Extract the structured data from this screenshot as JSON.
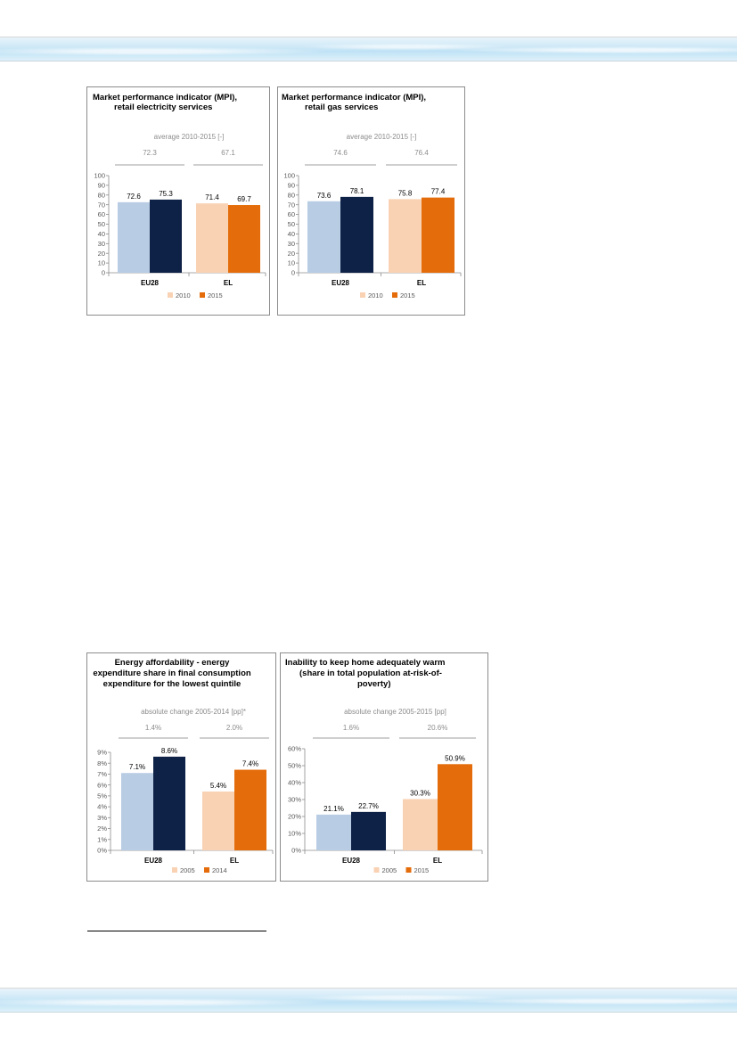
{
  "colors": {
    "eu_light": "#b8cce4",
    "eu_dark": "#0e2146",
    "el_light": "#f9d2b4",
    "el_dark": "#e46c0a",
    "eu_dark_alt": "#14274a"
  },
  "chart_data": [
    {
      "type": "bar",
      "title": [
        "Market performance indicator (MPI),",
        "retail electricity services"
      ],
      "subtitle": "average 2010-2015 [-]",
      "group_notes": [
        "72.3",
        "67.1"
      ],
      "categories": [
        "EU28",
        "EL"
      ],
      "series": [
        {
          "name": "2010",
          "values": [
            72.6,
            71.4
          ]
        },
        {
          "name": "2015",
          "values": [
            75.3,
            69.7
          ]
        }
      ],
      "data_labels": [
        [
          "72.6",
          "71.4"
        ],
        [
          "75.3",
          "69.7"
        ]
      ],
      "ylim": [
        0,
        100
      ],
      "yticks": [
        0,
        10,
        20,
        30,
        40,
        50,
        60,
        70,
        80,
        90,
        100
      ],
      "ytick_labels": [
        "0",
        "10",
        "20",
        "30",
        "40",
        "50",
        "60",
        "70",
        "80",
        "90",
        "100"
      ],
      "legend": [
        "2010",
        "2015"
      ]
    },
    {
      "type": "bar",
      "title": [
        "Market performance indicator (MPI),",
        "retail gas services"
      ],
      "subtitle": "average 2010-2015 [-]",
      "group_notes": [
        "74.6",
        "76.4"
      ],
      "categories": [
        "EU28",
        "EL"
      ],
      "series": [
        {
          "name": "2010",
          "values": [
            73.6,
            75.8
          ]
        },
        {
          "name": "2015",
          "values": [
            78.1,
            77.4
          ]
        }
      ],
      "data_labels": [
        [
          "73.6",
          "75.8"
        ],
        [
          "78.1",
          "77.4"
        ]
      ],
      "ylim": [
        0,
        100
      ],
      "yticks": [
        0,
        10,
        20,
        30,
        40,
        50,
        60,
        70,
        80,
        90,
        100
      ],
      "ytick_labels": [
        "0",
        "10",
        "20",
        "30",
        "40",
        "50",
        "60",
        "70",
        "80",
        "90",
        "100"
      ],
      "legend": [
        "2010",
        "2015"
      ]
    },
    {
      "type": "bar",
      "title": [
        "Energy affordability - energy",
        "expenditure share in final consumption",
        "expenditure for the lowest quintile"
      ],
      "subtitle": "absolute change 2005-2014 [pp]*",
      "group_notes": [
        "1.4%",
        "2.0%"
      ],
      "categories": [
        "EU28",
        "EL"
      ],
      "series": [
        {
          "name": "2005",
          "values": [
            7.1,
            5.4
          ]
        },
        {
          "name": "2014",
          "values": [
            8.6,
            7.4
          ]
        }
      ],
      "data_labels": [
        [
          "7.1%",
          "5.4%"
        ],
        [
          "8.6%",
          "7.4%"
        ]
      ],
      "ylim": [
        0,
        9
      ],
      "yticks": [
        0,
        1,
        2,
        3,
        4,
        5,
        6,
        7,
        8,
        9
      ],
      "ytick_labels": [
        "0%",
        "1%",
        "2%",
        "3%",
        "4%",
        "5%",
        "6%",
        "7%",
        "8%",
        "9%"
      ],
      "legend": [
        "2005",
        "2014"
      ]
    },
    {
      "type": "bar",
      "title": [
        "Inability to keep home adequately warm",
        "(share in total population at-risk-of-",
        "poverty)"
      ],
      "subtitle": "absolute change 2005-2015 [pp]",
      "group_notes": [
        "1.6%",
        "20.6%"
      ],
      "categories": [
        "EU28",
        "EL"
      ],
      "series": [
        {
          "name": "2005",
          "values": [
            21.1,
            30.3
          ]
        },
        {
          "name": "2015",
          "values": [
            22.7,
            50.9
          ]
        }
      ],
      "data_labels": [
        [
          "21.1%",
          "30.3%"
        ],
        [
          "22.7%",
          "50.9%"
        ]
      ],
      "ylim": [
        0,
        60
      ],
      "yticks": [
        0,
        10,
        20,
        30,
        40,
        50,
        60
      ],
      "ytick_labels": [
        "0%",
        "10%",
        "20%",
        "30%",
        "40%",
        "50%",
        "60%"
      ],
      "legend": [
        "2005",
        "2015"
      ]
    }
  ]
}
